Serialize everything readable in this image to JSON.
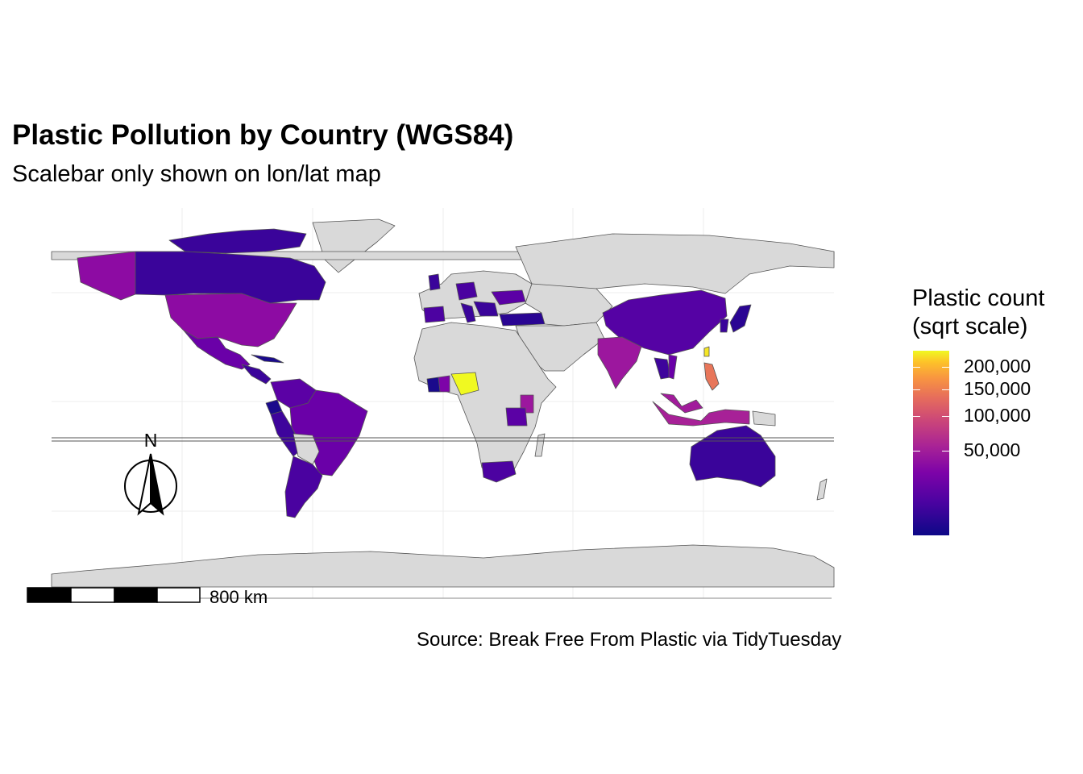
{
  "title": "Plastic Pollution by Country (WGS84)",
  "subtitle": "Scalebar only shown on lon/lat map",
  "caption": "Source: Break Free From Plastic via TidyTuesday",
  "legend": {
    "title_line1": "Plastic count",
    "title_line2": "(sqrt scale)",
    "scale": "sqrt",
    "max_value": 240000,
    "ticks": [
      {
        "label": "200,000",
        "value": 200000
      },
      {
        "label": "150,000",
        "value": 150000
      },
      {
        "label": "100,000",
        "value": 100000
      },
      {
        "label": "50,000",
        "value": 50000
      }
    ],
    "colors": [
      "#0d0887",
      "#7d03a8",
      "#cb4679",
      "#f89441",
      "#f0f921"
    ]
  },
  "north_arrow": {
    "label": "N"
  },
  "scalebar": {
    "label": "800 km",
    "segments": 4
  },
  "map": {
    "no_data_color": "#d9d9d9",
    "border_color": "#555555",
    "countries": [
      {
        "name": "Nigeria",
        "value": 230000,
        "color": "#f0f921"
      },
      {
        "name": "Philippines",
        "value": 120000,
        "color": "#e8765a"
      },
      {
        "name": "Taiwan",
        "value": 210000,
        "color": "#f5e626"
      },
      {
        "name": "Indonesia",
        "value": 45000,
        "color": "#a72197"
      },
      {
        "name": "India",
        "value": 40000,
        "color": "#9c179e"
      },
      {
        "name": "United States",
        "value": 35000,
        "color": "#8d0ba3"
      },
      {
        "name": "Malaysia",
        "value": 40000,
        "color": "#a11b9b"
      },
      {
        "name": "Kenya",
        "value": 30000,
        "color": "#9c179e"
      },
      {
        "name": "Brazil",
        "value": 15000,
        "color": "#6a00a8"
      },
      {
        "name": "China",
        "value": 10000,
        "color": "#5502a4"
      },
      {
        "name": "Mexico",
        "value": 12000,
        "color": "#6a00a8"
      },
      {
        "name": "Canada",
        "value": 3000,
        "color": "#3a049a"
      },
      {
        "name": "Australia",
        "value": 3000,
        "color": "#3a049a"
      },
      {
        "name": "Argentina",
        "value": 6000,
        "color": "#4a02a0"
      },
      {
        "name": "South Africa",
        "value": 5000,
        "color": "#4c02a1"
      },
      {
        "name": "Peru",
        "value": 4000,
        "color": "#3e049c"
      },
      {
        "name": "Ecuador",
        "value": 1000,
        "color": "#1a0a8c"
      },
      {
        "name": "Tanzania",
        "value": 8000,
        "color": "#5b01a5"
      },
      {
        "name": "Turkey",
        "value": 2000,
        "color": "#2a0593"
      },
      {
        "name": "Ghana",
        "value": 20000,
        "color": "#7d03a8"
      },
      {
        "name": "Cote d'Ivoire",
        "value": 1000,
        "color": "#1a0a8c"
      },
      {
        "name": "Japan",
        "value": 2000,
        "color": "#2a0593"
      },
      {
        "name": "Thailand",
        "value": 4000,
        "color": "#3e049c"
      },
      {
        "name": "Vietnam",
        "value": 10000,
        "color": "#6a00a8"
      },
      {
        "name": "Spain",
        "value": 5000,
        "color": "#4c02a1"
      },
      {
        "name": "Colombia",
        "value": 6000,
        "color": "#5b01a5"
      }
    ]
  }
}
